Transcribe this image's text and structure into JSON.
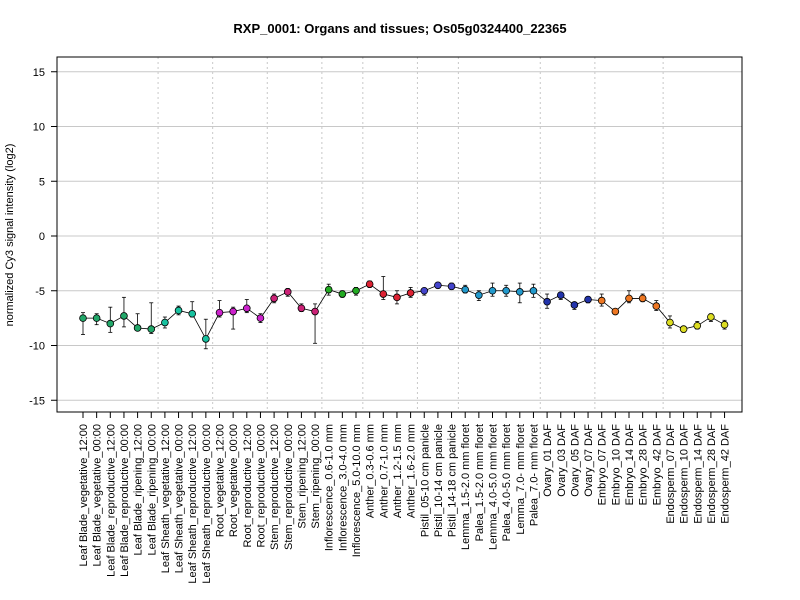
{
  "chart_data": {
    "type": "line",
    "title": "RXP_0001: Organs and tissues; Os05g0324400_22365",
    "xlabel": "",
    "ylabel": "normalized Cy3 signal intensity (log2)",
    "ylim": [
      -16,
      16
    ],
    "yticks": [
      -15,
      -10,
      -5,
      0,
      5,
      10,
      15
    ],
    "grid": true,
    "categories": [
      "Leaf Blade_vegetative_12:00",
      "Leaf Blade_vegetative_00:00",
      "Leaf Blade_reproductive_12:00",
      "Leaf Blade_reproductive_00:00",
      "Leaf Blade_ripening_12:00",
      "Leaf Blade_ripening_00:00",
      "Leaf Sheath_vegetative_12:00",
      "Leaf Sheath_vegetative_00:00",
      "Leaf Sheath_reproductive_12:00",
      "Leaf Sheath_reproductive_00:00",
      "Root_vegetative_12:00",
      "Root_vegetative_00:00",
      "Root_reproductive_12:00",
      "Root_reproductive_00:00",
      "Stem_reproductive_12:00",
      "Stem_reproductive_00:00",
      "Stem_ripening_12:00",
      "Stem_ripening_00:00",
      "Inflorescence_0.6-1.0 mm",
      "Inflorescence_3.0-4.0 mm",
      "Inflorescence_5.0-10.0 mm",
      "Anther_0.3-0.6 mm",
      "Anther_0.7-1.0 mm",
      "Anther_1.2-1.5 mm",
      "Anther_1.6-2.0 mm",
      "Pistil_05-10 cm panicle",
      "Pistil_10-14 cm panicle",
      "Pistil_14-18 cm panicle",
      "Lemma_1.5-2.0 mm floret",
      "Palea_1.5-2.0 mm floret",
      "Lemma_4.0-5.0 mm floret",
      "Palea_4.0-5.0 mm floret",
      "Lemma_7.0- mm floret",
      "Palea_7.0- mm floret",
      "Ovary_01 DAF",
      "Ovary_03 DAF",
      "Ovary_05 DAF",
      "Ovary_07 DAF",
      "Embryo_07 DAF",
      "Embryo_10 DAF",
      "Embryo_14 DAF",
      "Embryo_28 DAF",
      "Embryo_42 DAF",
      "Endosperm_07 DAF",
      "Endosperm_10 DAF",
      "Endosperm_14 DAF",
      "Endosperm_28 DAF",
      "Endosperm_42 DAF"
    ],
    "values": [
      -7.5,
      -7.5,
      -8.0,
      -7.3,
      -8.4,
      -8.5,
      -7.9,
      -6.8,
      -7.1,
      -9.4,
      -7.0,
      -6.9,
      -6.6,
      -7.5,
      -5.7,
      -5.1,
      -6.6,
      -6.9,
      -4.9,
      -5.3,
      -5.0,
      -4.4,
      -5.3,
      -5.6,
      -5.2,
      -5.0,
      -4.5,
      -4.6,
      -4.9,
      -5.4,
      -5.0,
      -5.0,
      -5.1,
      -5.0,
      -6.0,
      -5.4,
      -6.3,
      -5.8,
      -5.9,
      -6.9,
      -5.7,
      -5.7,
      -6.4,
      -7.9,
      -8.5,
      -8.2,
      -7.4,
      -8.1
    ],
    "errors": [
      [
        -9.0,
        -7.0
      ],
      [
        -8.1,
        -7.1
      ],
      [
        -8.8,
        -6.5
      ],
      [
        -8.3,
        -5.6
      ],
      [
        -8.5,
        -7.1
      ],
      [
        -8.9,
        -6.1
      ],
      [
        -8.4,
        -7.4
      ],
      [
        -7.2,
        -6.4
      ],
      [
        -7.4,
        -6.0
      ],
      [
        -10.3,
        -7.6
      ],
      [
        -7.4,
        -5.9
      ],
      [
        -8.5,
        -6.5
      ],
      [
        -7.0,
        -5.8
      ],
      [
        -7.9,
        -7.1
      ],
      [
        -6.1,
        -5.3
      ],
      [
        -5.5,
        -4.8
      ],
      [
        -6.9,
        -6.2
      ],
      [
        -9.8,
        -6.2
      ],
      [
        -5.4,
        -4.4
      ],
      [
        -5.6,
        -5.0
      ],
      [
        -5.4,
        -4.7
      ],
      [
        -4.7,
        -4.1
      ],
      [
        -5.8,
        -3.7
      ],
      [
        -6.2,
        -5.0
      ],
      [
        -5.6,
        -4.7
      ],
      [
        -5.4,
        -4.8
      ],
      [
        -4.7,
        -4.3
      ],
      [
        -4.9,
        -4.3
      ],
      [
        -5.2,
        -4.5
      ],
      [
        -5.9,
        -5.0
      ],
      [
        -5.5,
        -4.3
      ],
      [
        -5.5,
        -4.5
      ],
      [
        -6.1,
        -4.3
      ],
      [
        -5.6,
        -4.4
      ],
      [
        -6.6,
        -5.3
      ],
      [
        -5.8,
        -5.2
      ],
      [
        -6.7,
        -6.1
      ],
      [
        -6.1,
        -5.6
      ],
      [
        -6.4,
        -5.3
      ],
      [
        -7.1,
        -6.7
      ],
      [
        -6.1,
        -5.0
      ],
      [
        -6.0,
        -5.3
      ],
      [
        -6.8,
        -5.9
      ],
      [
        -8.4,
        -7.3
      ],
      [
        -8.8,
        -8.3
      ],
      [
        -8.5,
        -7.8
      ],
      [
        -7.8,
        -7.1
      ],
      [
        -8.5,
        -7.7
      ]
    ],
    "point_colors": [
      "#22a86a",
      "#22a86a",
      "#22a86a",
      "#22a86a",
      "#22a86a",
      "#22a86a",
      "#18c2a0",
      "#18c2a0",
      "#18c2a0",
      "#18c2a0",
      "#cc22cc",
      "#cc22cc",
      "#cc22cc",
      "#cc22cc",
      "#cc2277",
      "#cc2277",
      "#cc2277",
      "#cc2277",
      "#22aa22",
      "#22aa22",
      "#22aa22",
      "#dd2233",
      "#dd2233",
      "#dd2233",
      "#dd2233",
      "#4444cc",
      "#4444cc",
      "#4444cc",
      "#2299cc",
      "#2299cc",
      "#2299cc",
      "#2299cc",
      "#2299cc",
      "#2299cc",
      "#2233aa",
      "#2233aa",
      "#2233aa",
      "#2233aa",
      "#ee7722",
      "#ee7722",
      "#ee7722",
      "#ee7722",
      "#ee7722",
      "#dddd22",
      "#dddd22",
      "#dddd22",
      "#dddd22",
      "#dddd22"
    ],
    "group_separators_after": [
      5,
      9,
      13,
      17,
      20,
      24,
      27,
      33,
      37,
      42
    ]
  }
}
